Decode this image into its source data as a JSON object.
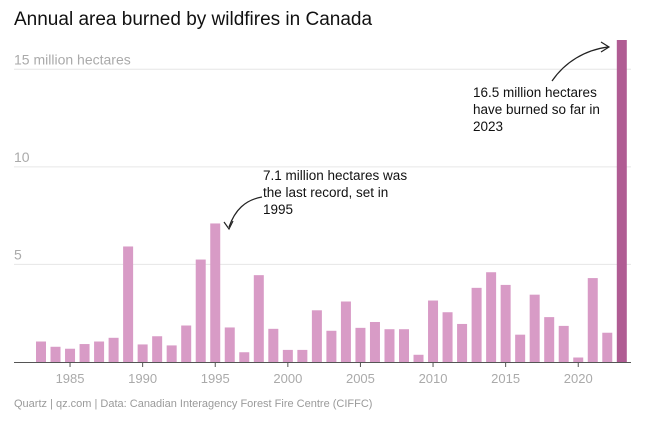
{
  "chart_data": {
    "type": "bar",
    "title": "Annual area burned by wildfires in Canada",
    "xlabel": "",
    "ylabel": "",
    "unit_label": "15 million hectares",
    "ylim": [
      0,
      16.5
    ],
    "yticks": [
      "",
      "5",
      "10",
      "15 million hectares"
    ],
    "ytick_values": [
      0,
      5,
      10,
      15
    ],
    "xticks": [
      "1985",
      "1990",
      "1995",
      "2000",
      "2005",
      "2010",
      "2015",
      "2020"
    ],
    "xtick_values": [
      1985,
      1990,
      1995,
      2000,
      2005,
      2010,
      2015,
      2020
    ],
    "x": [
      1983,
      1984,
      1985,
      1986,
      1987,
      1988,
      1989,
      1990,
      1991,
      1992,
      1993,
      1994,
      1995,
      1996,
      1997,
      1998,
      1999,
      2000,
      2001,
      2002,
      2003,
      2004,
      2005,
      2006,
      2007,
      2008,
      2009,
      2010,
      2011,
      2012,
      2013,
      2014,
      2015,
      2016,
      2017,
      2018,
      2019,
      2020,
      2021,
      2022,
      2023
    ],
    "values": [
      1.05,
      0.78,
      0.68,
      0.92,
      1.05,
      1.24,
      5.92,
      0.9,
      1.32,
      0.85,
      1.87,
      5.25,
      7.1,
      1.77,
      0.5,
      4.45,
      1.7,
      0.62,
      0.62,
      2.65,
      1.6,
      3.1,
      1.75,
      2.05,
      1.68,
      1.68,
      0.37,
      3.15,
      2.55,
      1.95,
      3.8,
      4.6,
      3.95,
      1.4,
      3.45,
      2.3,
      1.85,
      0.23,
      4.3,
      1.5,
      16.5
    ],
    "highlight_index": 40,
    "colors": {
      "bar": "#d89bc6",
      "highlight": "#b05c93",
      "grid": "#e6e6e6",
      "axis": "#555555",
      "tick_text": "#aaaaaa"
    },
    "annotations": [
      {
        "id": "1995",
        "text": "7.1 million hectares was\nthe last record, set in\n1995",
        "target_x": 1995
      },
      {
        "id": "2023",
        "text": "16.5 million hectares\nhave burned so far in\n2023",
        "target_x": 2023
      }
    ],
    "grid": true,
    "legend": "none"
  },
  "source": "Quartz | qz.com | Data: Canadian Interagency Forest Fire Centre (CIFFC)"
}
